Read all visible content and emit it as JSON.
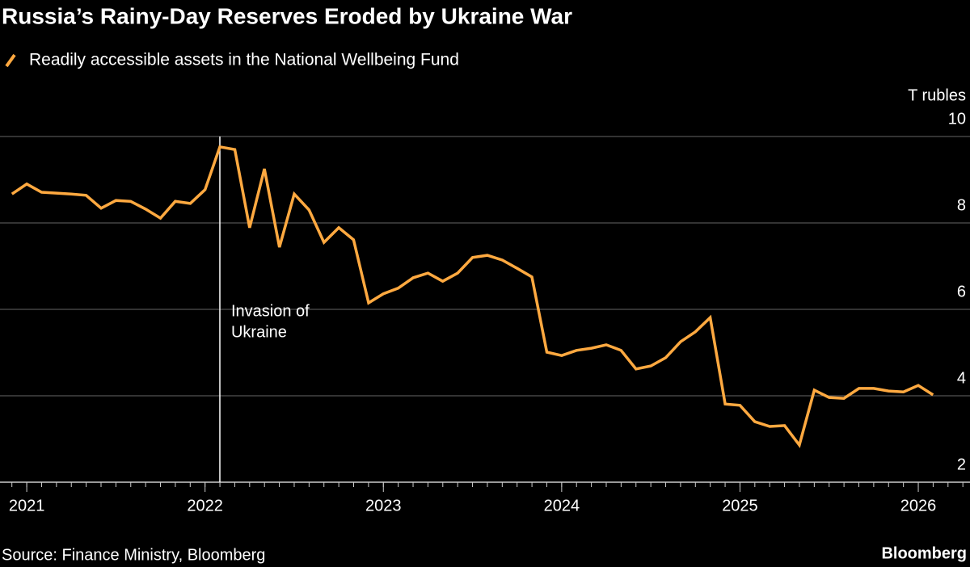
{
  "chart_data": {
    "type": "line",
    "title": "Russia’s Rainy-Day Reserves Eroded by Ukraine War",
    "y_label": "T rubles",
    "source": "Source: Finance Ministry, Bloomberg",
    "brand": "Bloomberg",
    "x": [
      2020.917,
      2021.0,
      2021.083,
      2021.167,
      2021.25,
      2021.333,
      2021.417,
      2021.5,
      2021.583,
      2021.667,
      2021.75,
      2021.833,
      2021.917,
      2022.0,
      2022.083,
      2022.167,
      2022.25,
      2022.333,
      2022.417,
      2022.5,
      2022.583,
      2022.667,
      2022.75,
      2022.833,
      2022.917,
      2023.0,
      2023.083,
      2023.167,
      2023.25,
      2023.333,
      2023.417,
      2023.5,
      2023.583,
      2023.667,
      2023.75,
      2023.833,
      2023.917,
      2024.0,
      2024.083,
      2024.167,
      2024.25,
      2024.333,
      2024.417,
      2024.5,
      2024.583,
      2024.667,
      2024.75,
      2024.833,
      2024.917,
      2025.0,
      2025.083,
      2025.167,
      2025.25,
      2025.333,
      2025.417,
      2025.5,
      2025.583,
      2025.667,
      2025.75,
      2025.833,
      2025.917,
      2026.0,
      2026.083
    ],
    "series": [
      {
        "name": "Readily accessible assets in the National Wellbeing Fund",
        "color": "#ffa940",
        "values": [
          8.67,
          8.9,
          8.71,
          8.69,
          8.67,
          8.64,
          8.34,
          8.52,
          8.5,
          8.32,
          8.11,
          8.5,
          8.45,
          8.77,
          9.76,
          9.7,
          7.89,
          9.25,
          7.44,
          8.67,
          8.3,
          7.55,
          7.89,
          7.61,
          6.15,
          6.36,
          6.49,
          6.73,
          6.84,
          6.65,
          6.84,
          7.2,
          7.25,
          7.14,
          6.95,
          6.75,
          5.01,
          4.93,
          5.05,
          5.1,
          5.18,
          5.05,
          4.62,
          4.69,
          4.88,
          5.25,
          5.48,
          5.81,
          3.81,
          3.78,
          3.4,
          3.29,
          3.31,
          2.86,
          4.13,
          3.96,
          3.94,
          4.17,
          4.17,
          4.11,
          4.09,
          4.24,
          4.02
        ]
      }
    ],
    "xlim": [
      2020.85,
      2026.29
    ],
    "xticks": [
      2021,
      2022,
      2023,
      2024,
      2025,
      2026
    ],
    "ylim": [
      2,
      10
    ],
    "yticks": [
      2,
      4,
      6,
      8,
      10
    ],
    "grid": true,
    "annotation": {
      "x": 2022.083,
      "text": [
        "Invasion of",
        "Ukraine"
      ]
    }
  }
}
